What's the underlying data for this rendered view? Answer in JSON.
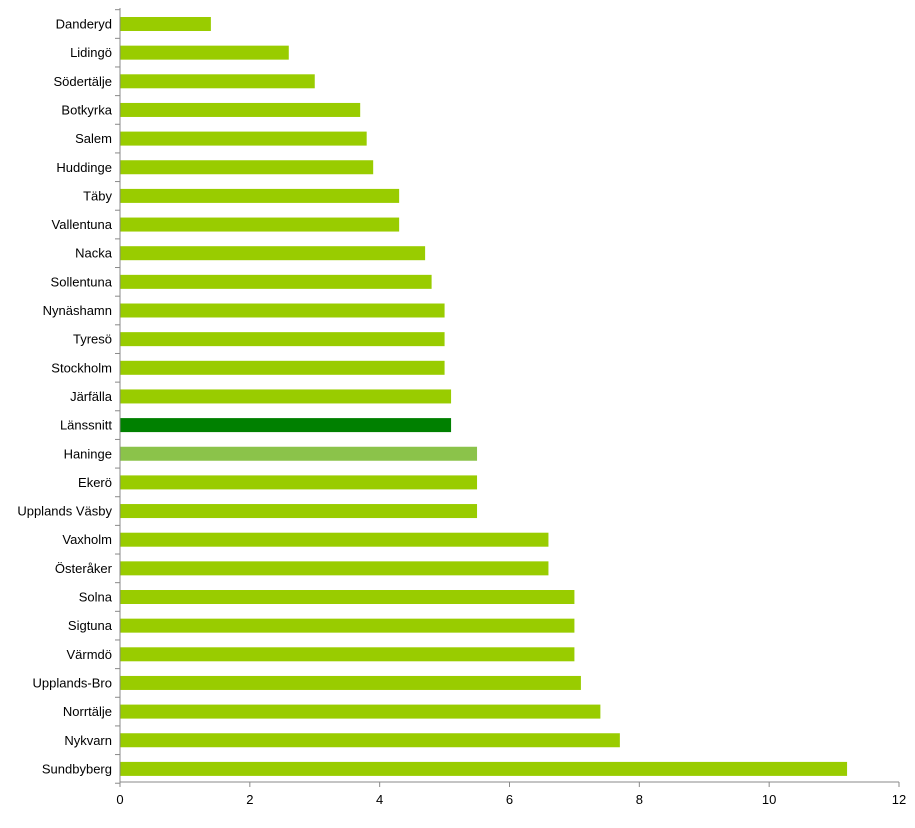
{
  "chart_data": {
    "type": "bar",
    "orientation": "horizontal",
    "categories": [
      "Danderyd",
      "Lidingö",
      "Södertälje",
      "Botkyrka",
      "Salem",
      "Huddinge",
      "Täby",
      "Vallentuna",
      "Nacka",
      "Sollentuna",
      "Nynäshamn",
      "Tyresö",
      "Stockholm",
      "Järfälla",
      "Länssnitt",
      "Haninge",
      "Ekerö",
      "Upplands Väsby",
      "Vaxholm",
      "Österåker",
      "Solna",
      "Sigtuna",
      "Värmdö",
      "Upplands-Bro",
      "Norrtälje",
      "Nykvarn",
      "Sundbyberg"
    ],
    "values": [
      1.4,
      2.6,
      3.0,
      3.7,
      3.8,
      3.9,
      4.3,
      4.3,
      4.7,
      4.8,
      5.0,
      5.0,
      5.0,
      5.1,
      5.1,
      5.5,
      5.5,
      5.5,
      6.6,
      6.6,
      7.0,
      7.0,
      7.0,
      7.1,
      7.4,
      7.7,
      11.2
    ],
    "bar_colors": [
      "#99cc00",
      "#99cc00",
      "#99cc00",
      "#99cc00",
      "#99cc00",
      "#99cc00",
      "#99cc00",
      "#99cc00",
      "#99cc00",
      "#99cc00",
      "#99cc00",
      "#99cc00",
      "#99cc00",
      "#99cc00",
      "#008000",
      "#8bc34a",
      "#99cc00",
      "#99cc00",
      "#99cc00",
      "#99cc00",
      "#99cc00",
      "#99cc00",
      "#99cc00",
      "#99cc00",
      "#99cc00",
      "#99cc00",
      "#99cc00"
    ],
    "xlim": [
      0,
      12
    ],
    "xticks": [
      0,
      2,
      4,
      6,
      8,
      10,
      12
    ],
    "title": "",
    "xlabel": "",
    "ylabel": "",
    "grid": false,
    "legend": "none"
  }
}
